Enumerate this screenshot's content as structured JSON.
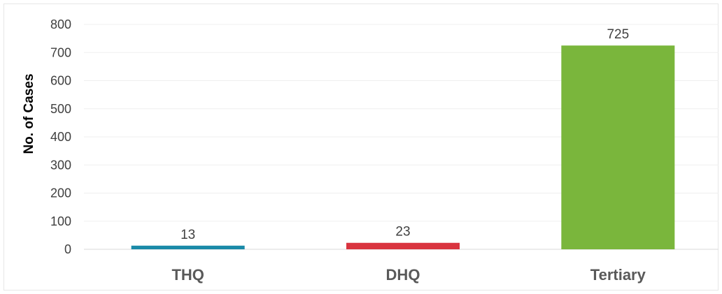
{
  "chart_data": {
    "type": "bar",
    "title": "",
    "xlabel": "",
    "ylabel": "No. of Cases",
    "categories": [
      "THQ",
      "DHQ",
      "Tertiary"
    ],
    "values": [
      13,
      23,
      725
    ],
    "data_labels": [
      "13",
      "23",
      "725"
    ],
    "bar_colors": [
      "#1a8aa8",
      "#d9343f",
      "#7ab63c"
    ],
    "ylim": [
      0,
      800
    ],
    "yticks": [
      0,
      100,
      200,
      300,
      400,
      500,
      600,
      700,
      800
    ],
    "ytick_labels": [
      "0",
      "100",
      "200",
      "300",
      "400",
      "500",
      "600",
      "700",
      "800"
    ],
    "grid": true,
    "legend": "none"
  }
}
